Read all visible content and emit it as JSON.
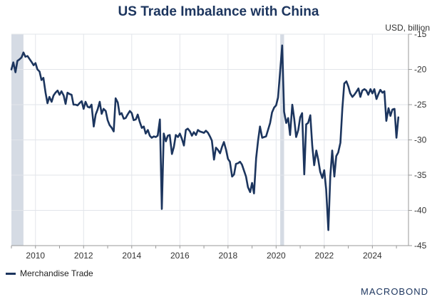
{
  "title": "US Trade Imbalance with China",
  "unit_label": "USD, billion",
  "legend": [
    {
      "label": "Merchandise Trade",
      "color": "#1c355e"
    }
  ],
  "brand": "MACROBOND",
  "colors": {
    "line": "#1c355e",
    "recession": "#d5dbe4",
    "grid": "#e2e5ea"
  },
  "chart_data": {
    "type": "line",
    "title": "US Trade Imbalance with China",
    "ylabel": "USD, billion",
    "ylim": [
      -45,
      -15
    ],
    "xlim": [
      2009.0,
      2025.5
    ],
    "yticks": [
      -45,
      -40,
      -35,
      -30,
      -25,
      -20,
      -15
    ],
    "ytick_labels": [
      "-45",
      "-40",
      "-35",
      "-30",
      "-25",
      "-20",
      "-15"
    ],
    "xticks": [
      2010,
      2012,
      2014,
      2016,
      2018,
      2020,
      2022,
      2024
    ],
    "xtick_labels": [
      "2010",
      "2012",
      "2014",
      "2016",
      "2018",
      "2020",
      "2022",
      "2024"
    ],
    "shaded_periods": [
      [
        2009.0,
        2009.5
      ],
      [
        2020.17,
        2020.33
      ]
    ],
    "grid": true,
    "legend_position": "bottom-left",
    "series": [
      {
        "name": "Merchandise Trade",
        "x": [
          2009.0,
          2009.08,
          2009.17,
          2009.25,
          2009.33,
          2009.42,
          2009.5,
          2009.58,
          2009.67,
          2009.75,
          2009.83,
          2009.92,
          2010.0,
          2010.08,
          2010.17,
          2010.25,
          2010.33,
          2010.42,
          2010.5,
          2010.58,
          2010.67,
          2010.75,
          2010.83,
          2010.92,
          2011.0,
          2011.08,
          2011.17,
          2011.25,
          2011.33,
          2011.42,
          2011.5,
          2011.58,
          2011.67,
          2011.75,
          2011.83,
          2011.92,
          2012.0,
          2012.08,
          2012.17,
          2012.25,
          2012.33,
          2012.42,
          2012.5,
          2012.58,
          2012.67,
          2012.75,
          2012.83,
          2012.92,
          2013.0,
          2013.08,
          2013.17,
          2013.25,
          2013.33,
          2013.42,
          2013.5,
          2013.58,
          2013.67,
          2013.75,
          2013.83,
          2013.92,
          2014.0,
          2014.08,
          2014.17,
          2014.25,
          2014.33,
          2014.42,
          2014.5,
          2014.58,
          2014.67,
          2014.75,
          2014.83,
          2014.92,
          2015.0,
          2015.08,
          2015.17,
          2015.25,
          2015.33,
          2015.42,
          2015.5,
          2015.58,
          2015.67,
          2015.75,
          2015.83,
          2015.92,
          2016.0,
          2016.08,
          2016.17,
          2016.25,
          2016.33,
          2016.42,
          2016.5,
          2016.58,
          2016.67,
          2016.75,
          2016.83,
          2016.92,
          2017.0,
          2017.08,
          2017.17,
          2017.25,
          2017.33,
          2017.42,
          2017.5,
          2017.58,
          2017.67,
          2017.75,
          2017.83,
          2017.92,
          2018.0,
          2018.08,
          2018.17,
          2018.25,
          2018.33,
          2018.42,
          2018.5,
          2018.58,
          2018.67,
          2018.75,
          2018.83,
          2018.92,
          2019.0,
          2019.08,
          2019.17,
          2019.25,
          2019.33,
          2019.42,
          2019.5,
          2019.58,
          2019.67,
          2019.75,
          2019.83,
          2019.92,
          2020.0,
          2020.08,
          2020.17,
          2020.25,
          2020.33,
          2020.42,
          2020.5,
          2020.58,
          2020.67,
          2020.75,
          2020.83,
          2020.92,
          2021.0,
          2021.08,
          2021.17,
          2021.25,
          2021.33,
          2021.42,
          2021.5,
          2021.58,
          2021.67,
          2021.75,
          2021.83,
          2021.92,
          2022.0,
          2022.08,
          2022.17,
          2022.25,
          2022.33,
          2022.42,
          2022.5,
          2022.58,
          2022.67,
          2022.75,
          2022.83,
          2022.92,
          2023.0,
          2023.08,
          2023.17,
          2023.25,
          2023.33,
          2023.42,
          2023.5,
          2023.58,
          2023.67,
          2023.75,
          2023.83,
          2023.92,
          2024.0,
          2024.08,
          2024.17,
          2024.25,
          2024.33,
          2024.42,
          2024.5,
          2024.58,
          2024.67,
          2024.75,
          2024.83,
          2024.92,
          2025.0,
          2025.08
        ],
        "values": [
          -20.0,
          -19.0,
          -20.4,
          -18.8,
          -18.6,
          -18.3,
          -17.6,
          -18.2,
          -18.1,
          -18.5,
          -18.9,
          -19.4,
          -19.1,
          -20.0,
          -20.3,
          -21.5,
          -21.2,
          -23.3,
          -24.8,
          -23.9,
          -24.6,
          -23.7,
          -23.3,
          -23.0,
          -23.6,
          -23.1,
          -23.7,
          -24.9,
          -23.3,
          -23.5,
          -23.6,
          -25.0,
          -25.0,
          -25.1,
          -24.8,
          -24.5,
          -25.6,
          -24.6,
          -25.3,
          -25.4,
          -25.0,
          -28.1,
          -26.4,
          -25.7,
          -24.6,
          -26.3,
          -25.6,
          -25.9,
          -27.2,
          -27.9,
          -28.3,
          -28.8,
          -24.1,
          -24.7,
          -26.4,
          -26.2,
          -27.0,
          -26.9,
          -26.4,
          -25.9,
          -26.2,
          -27.2,
          -27.1,
          -26.4,
          -27.4,
          -28.3,
          -28.1,
          -29.1,
          -28.6,
          -29.4,
          -29.7,
          -29.5,
          -29.6,
          -29.4,
          -27.1,
          -39.8,
          -29.1,
          -30.2,
          -29.4,
          -29.3,
          -32.0,
          -31.0,
          -29.3,
          -29.6,
          -29.1,
          -29.8,
          -30.8,
          -28.6,
          -28.4,
          -28.8,
          -29.4,
          -28.9,
          -29.3,
          -28.6,
          -28.8,
          -28.9,
          -29.0,
          -28.7,
          -29.0,
          -29.5,
          -30.1,
          -32.8,
          -31.1,
          -31.4,
          -31.9,
          -31.0,
          -30.3,
          -31.4,
          -32.7,
          -33.1,
          -35.2,
          -34.9,
          -33.4,
          -33.3,
          -33.1,
          -33.5,
          -34.4,
          -35.2,
          -36.7,
          -37.4,
          -36.1,
          -37.6,
          -32.6,
          -30.1,
          -28.1,
          -29.7,
          -29.6,
          -29.5,
          -28.5,
          -27.6,
          -26.1,
          -25.4,
          -25.1,
          -24.0,
          -20.1,
          -16.6,
          -26.0,
          -27.6,
          -26.9,
          -29.3,
          -25.0,
          -27.0,
          -29.6,
          -28.6,
          -26.8,
          -26.2,
          -34.9,
          -27.8,
          -27.6,
          -26.5,
          -30.8,
          -33.6,
          -31.5,
          -32.8,
          -34.5,
          -35.4,
          -34.3,
          -37.0,
          -42.8,
          -35.2,
          -31.5,
          -35.2,
          -32.3,
          -31.8,
          -30.4,
          -25.6,
          -22.0,
          -21.7,
          -22.4,
          -23.4,
          -23.9,
          -23.6,
          -23.2,
          -22.7,
          -23.9,
          -23.0,
          -22.8,
          -23.0,
          -23.6,
          -22.8,
          -23.4,
          -22.8,
          -24.2,
          -23.5,
          -22.9,
          -23.3,
          -23.1,
          -27.3,
          -25.5,
          -26.6,
          -25.7,
          -25.6,
          -29.7,
          -26.8
        ]
      }
    ]
  }
}
